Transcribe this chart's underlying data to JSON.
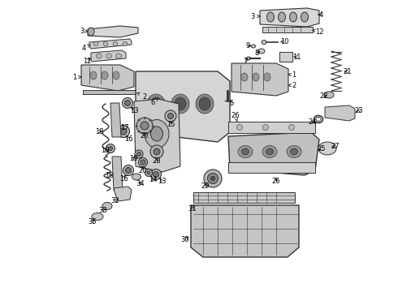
{
  "bg_color": "#ffffff",
  "line_color": "#333333",
  "figsize": [
    4.9,
    3.6
  ],
  "dpi": 100
}
